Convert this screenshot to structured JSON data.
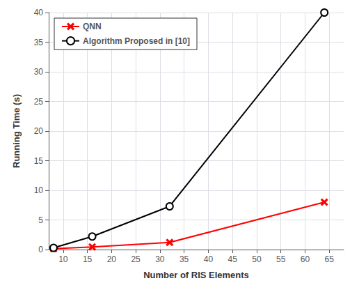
{
  "chart_data": {
    "type": "line",
    "xlabel": "Number of RIS Elements",
    "ylabel": "Running Time (s)",
    "x": [
      8,
      16,
      32,
      64
    ],
    "series": [
      {
        "name": "QNN",
        "color": "#ff0000",
        "marker": "x",
        "values": [
          0.15,
          0.45,
          1.2,
          8.0
        ]
      },
      {
        "name": "Algorithm Proposed in [10]",
        "color": "#000000",
        "marker": "circle",
        "values": [
          0.3,
          2.2,
          7.3,
          40.0
        ]
      }
    ],
    "xlim": [
      7,
      68
    ],
    "ylim": [
      0,
      40
    ],
    "xticks": [
      10,
      15,
      20,
      25,
      30,
      35,
      40,
      45,
      50,
      55,
      60,
      65
    ],
    "yticks": [
      0,
      5,
      10,
      15,
      20,
      25,
      30,
      35,
      40
    ],
    "grid": true,
    "legend": "upper left"
  }
}
